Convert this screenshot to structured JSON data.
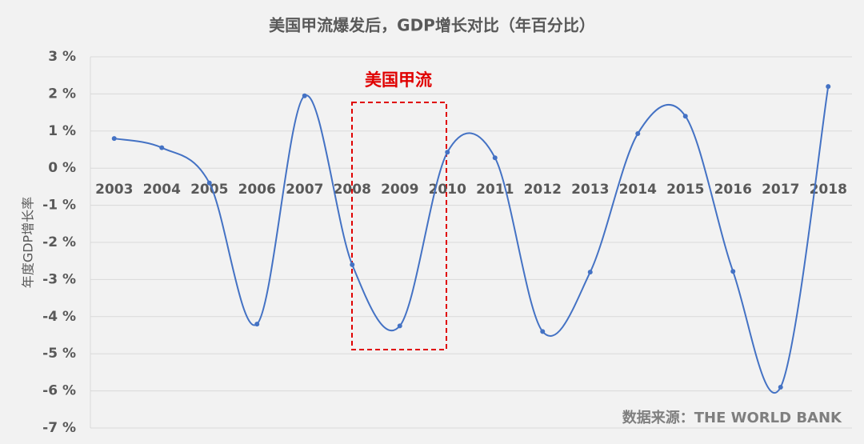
{
  "chart_data": {
    "type": "line",
    "title": "美国甲流爆发后，GDP增长对比（年百分比）",
    "y_label": "年度GDP增长率",
    "annotation": "美国甲流",
    "source": "数据来源：THE WORLD BANK",
    "categories": [
      "2003",
      "2004",
      "2005",
      "2006",
      "2007",
      "2008",
      "2009",
      "2010",
      "2011",
      "2012",
      "2013",
      "2014",
      "2015",
      "2016",
      "2017",
      "2018"
    ],
    "values": [
      0.8,
      0.55,
      -0.4,
      -4.2,
      1.95,
      -2.6,
      -4.25,
      0.43,
      0.28,
      -4.4,
      -2.8,
      0.93,
      1.4,
      -2.78,
      -5.9,
      2.2
    ],
    "color": "#4472c4",
    "ylim": [
      -7,
      3
    ],
    "yticks": [
      {
        "value": -7,
        "label": "-7 %"
      },
      {
        "value": -6,
        "label": "-6 %"
      },
      {
        "value": -5,
        "label": "-5 %"
      },
      {
        "value": -4,
        "label": "-4 %"
      },
      {
        "value": -3,
        "label": "-3 %"
      },
      {
        "value": -2,
        "label": "-2 %"
      },
      {
        "value": -1,
        "label": "-1 %"
      },
      {
        "value": 0,
        "label": "0 %"
      },
      {
        "value": 1,
        "label": "1 %"
      },
      {
        "value": 2,
        "label": "2 %"
      },
      {
        "value": 3,
        "label": "3 %"
      }
    ],
    "grid": true
  }
}
